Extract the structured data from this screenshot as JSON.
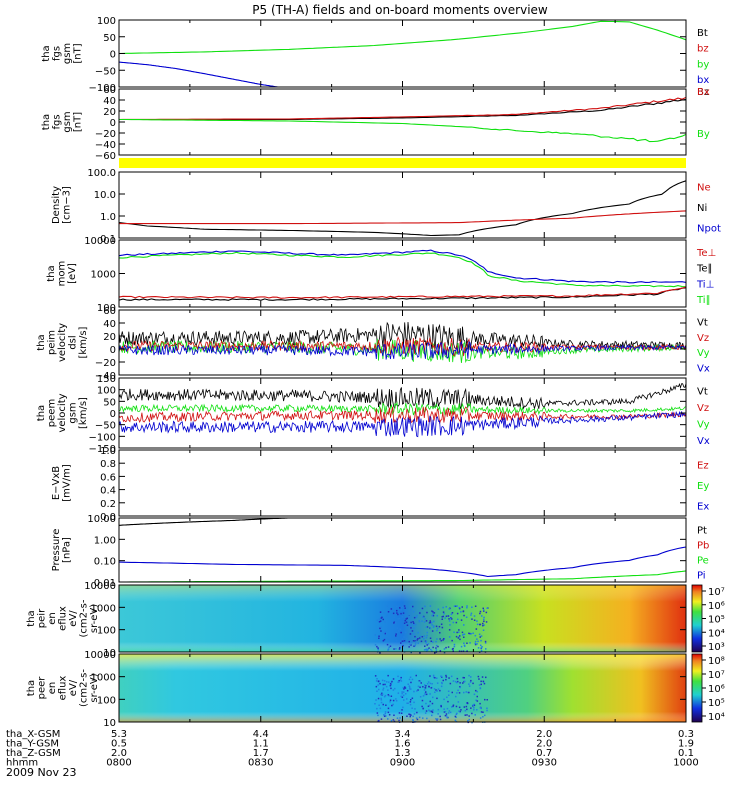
{
  "title": "P5 (TH-A) fields and on-board moments overview",
  "date": "2009 Nov 23",
  "colors": {
    "black": "#000000",
    "red": "#d01010",
    "green": "#10e010",
    "blue": "#0000d0",
    "yellow": "#ffff00"
  },
  "chart_data": [
    {
      "type": "line",
      "ylabel": [
        "tha",
        "fgs",
        "gsm",
        "[nT]"
      ],
      "yticks": [
        "100",
        "50",
        "0",
        "−50",
        "−100"
      ],
      "ylim": [
        -100,
        110
      ],
      "legend": [
        {
          "name": "Bt",
          "color": "black"
        },
        {
          "name": "bz",
          "color": "red"
        },
        {
          "name": "by",
          "color": "green"
        },
        {
          "name": "bx",
          "color": "blue"
        }
      ],
      "series": [
        {
          "name": "by",
          "color": "green",
          "x": [
            0,
            0.15,
            0.3,
            0.45,
            0.6,
            0.72,
            0.8,
            0.85,
            0.9,
            0.95,
            1.0
          ],
          "y": [
            5,
            10,
            18,
            30,
            50,
            72,
            90,
            106,
            104,
            78,
            48
          ]
        },
        {
          "name": "bx",
          "color": "blue",
          "x": [
            0,
            0.05,
            0.1,
            0.15,
            0.2,
            0.25,
            0.28
          ],
          "y": [
            -22,
            -30,
            -42,
            -58,
            -75,
            -92,
            -100
          ]
        }
      ]
    },
    {
      "type": "line",
      "ylabel": [
        "tha",
        "fgs",
        "gsm",
        "[nT]"
      ],
      "yticks": [
        "60",
        "40",
        "20",
        "0",
        "−20",
        "−40",
        "−60"
      ],
      "ylim": [
        -70,
        60
      ],
      "legend": [
        {
          "name": "Bz",
          "color": "black"
        },
        {
          "name": "Bx",
          "color": "red"
        },
        {
          "name": "By",
          "color": "green"
        }
      ],
      "series": [
        {
          "name": "Bz",
          "color": "black",
          "x": [
            0,
            0.3,
            0.5,
            0.7,
            0.85,
            0.95,
            1.0
          ],
          "y": [
            0,
            0,
            3,
            8,
            18,
            32,
            40
          ]
        },
        {
          "name": "Bx",
          "color": "red",
          "x": [
            0,
            0.3,
            0.5,
            0.7,
            0.85,
            0.95,
            1.0
          ],
          "y": [
            0,
            1,
            5,
            10,
            22,
            36,
            42
          ]
        },
        {
          "name": "By",
          "color": "green",
          "x": [
            0,
            0.3,
            0.5,
            0.6,
            0.7,
            0.8,
            0.9,
            0.95,
            1.0
          ],
          "y": [
            0,
            -3,
            -8,
            -14,
            -22,
            -28,
            -38,
            -45,
            -30
          ]
        }
      ]
    },
    {
      "type": "line",
      "log": true,
      "ylabel": [
        "Density",
        "[cm−3]"
      ],
      "yticks": [
        "100.0",
        "10.0",
        "1.0",
        "0.1"
      ],
      "ylim": [
        0.1,
        100
      ],
      "legend": [
        {
          "name": "Ne",
          "color": "red"
        },
        {
          "name": "Ni",
          "color": "black"
        },
        {
          "name": "Npot",
          "color": "blue"
        }
      ],
      "series": [
        {
          "name": "Ni",
          "color": "black",
          "x": [
            0,
            0.05,
            0.15,
            0.3,
            0.45,
            0.55,
            0.6,
            0.7,
            0.8,
            0.9,
            0.96,
            1.0
          ],
          "y": [
            0.5,
            0.35,
            0.25,
            0.22,
            0.18,
            0.13,
            0.14,
            0.4,
            1.3,
            3.5,
            10,
            40
          ]
        },
        {
          "name": "Ne",
          "color": "red",
          "x": [
            0,
            0.3,
            0.6,
            0.8,
            1.0
          ],
          "y": [
            0.45,
            0.45,
            0.5,
            0.8,
            1.7
          ]
        }
      ]
    },
    {
      "type": "line",
      "log": true,
      "ylabel": [
        "tha",
        "mom",
        "[eV]"
      ],
      "yticks": [
        "10000",
        "1000",
        "100"
      ],
      "ylim": [
        50,
        10000
      ],
      "legend": [
        {
          "name": "Te⊥",
          "color": "red"
        },
        {
          "name": "Te∥",
          "color": "black"
        },
        {
          "name": "Ti⊥",
          "color": "blue"
        },
        {
          "name": "Ti∥",
          "color": "green"
        }
      ],
      "series": [
        {
          "name": "Ti⊥",
          "color": "blue",
          "x": [
            0,
            0.1,
            0.2,
            0.3,
            0.4,
            0.5,
            0.55,
            0.6,
            0.65,
            0.7,
            0.8,
            0.9,
            1.0
          ],
          "y": [
            3000,
            3500,
            4200,
            3500,
            3000,
            3800,
            4300,
            3000,
            800,
            500,
            380,
            350,
            360
          ]
        },
        {
          "name": "Ti∥",
          "color": "green",
          "x": [
            0,
            0.1,
            0.2,
            0.3,
            0.4,
            0.5,
            0.55,
            0.6,
            0.65,
            0.7,
            0.8,
            0.9,
            1.0
          ],
          "y": [
            2500,
            3000,
            3600,
            3000,
            2600,
            3200,
            3600,
            2500,
            600,
            400,
            280,
            260,
            260
          ]
        },
        {
          "name": "Te∥",
          "color": "black",
          "x": [
            0,
            0.3,
            0.6,
            0.8,
            0.95,
            1.0
          ],
          "y": [
            90,
            90,
            100,
            110,
            140,
            230
          ]
        },
        {
          "name": "Te⊥",
          "color": "red",
          "x": [
            0,
            0.3,
            0.6,
            0.8,
            0.95,
            1.0
          ],
          "y": [
            110,
            105,
            115,
            120,
            150,
            240
          ]
        }
      ]
    },
    {
      "type": "line",
      "ylabel": [
        "tha",
        "peim",
        "velocity",
        "dsl",
        "[km/s]"
      ],
      "yticks": [
        "60",
        "40",
        "20",
        "0",
        "−20",
        "−40"
      ],
      "ylim": [
        -45,
        60
      ],
      "legend": [
        {
          "name": "Vt",
          "color": "black"
        },
        {
          "name": "Vz",
          "color": "red"
        },
        {
          "name": "Vy",
          "color": "green"
        },
        {
          "name": "Vx",
          "color": "blue"
        }
      ],
      "series": [
        {
          "name": "Vt",
          "color": "black",
          "noise": 12,
          "x": [
            0,
            0.3,
            0.5,
            0.6,
            0.7,
            0.8,
            1.0
          ],
          "y": [
            15,
            15,
            22,
            15,
            10,
            5,
            3
          ]
        },
        {
          "name": "Vy",
          "color": "green",
          "noise": 10,
          "x": [
            0,
            0.3,
            0.5,
            0.6,
            0.7,
            0.8,
            1.0
          ],
          "y": [
            0,
            0,
            -5,
            -8,
            -10,
            -5,
            0
          ]
        },
        {
          "name": "Vz",
          "color": "red",
          "noise": 8,
          "x": [
            0,
            0.3,
            0.5,
            0.6,
            0.7,
            0.8,
            1.0
          ],
          "y": [
            2,
            2,
            2,
            0,
            0,
            0,
            0
          ]
        },
        {
          "name": "Vx",
          "color": "blue",
          "noise": 8,
          "x": [
            0,
            0.3,
            0.5,
            0.6,
            0.7,
            0.8,
            1.0
          ],
          "y": [
            -5,
            -5,
            -8,
            -5,
            -3,
            -2,
            0
          ]
        }
      ]
    },
    {
      "type": "line",
      "ylabel": [
        "tha",
        "peem",
        "velocity",
        "gsm",
        "[km/s]"
      ],
      "yticks": [
        "150",
        "100",
        "50",
        "0",
        "−50",
        "−100",
        "−150"
      ],
      "ylim": [
        -150,
        150
      ],
      "legend": [
        {
          "name": "Vt",
          "color": "black"
        },
        {
          "name": "Vz",
          "color": "red"
        },
        {
          "name": "Vy",
          "color": "green"
        },
        {
          "name": "Vx",
          "color": "blue"
        }
      ],
      "series": [
        {
          "name": "Vt",
          "color": "black",
          "noise": 25,
          "x": [
            0,
            0.3,
            0.6,
            0.75,
            0.9,
            1.0
          ],
          "y": [
            80,
            75,
            60,
            40,
            50,
            120
          ]
        },
        {
          "name": "Vy",
          "color": "green",
          "noise": 15,
          "x": [
            0,
            0.3,
            0.6,
            0.75,
            0.9,
            1.0
          ],
          "y": [
            20,
            20,
            15,
            10,
            10,
            20
          ]
        },
        {
          "name": "Vz",
          "color": "red",
          "noise": 20,
          "x": [
            0,
            0.3,
            0.6,
            0.75,
            0.9,
            1.0
          ],
          "y": [
            -20,
            -10,
            -10,
            -15,
            -15,
            -5
          ]
        },
        {
          "name": "Vx",
          "color": "blue",
          "noise": 25,
          "x": [
            0,
            0.3,
            0.6,
            0.75,
            0.9,
            1.0
          ],
          "y": [
            -60,
            -60,
            -55,
            -35,
            -20,
            -5
          ]
        }
      ]
    },
    {
      "type": "line",
      "ylabel": [
        "E−VxB",
        "[mV/m]"
      ],
      "yticks": [
        "1.0",
        "0.8",
        "0.6",
        "0.4",
        "0.2",
        "0.0"
      ],
      "ylim": [
        0,
        1
      ],
      "legend": [
        {
          "name": "Ez",
          "color": "red"
        },
        {
          "name": "Ey",
          "color": "green"
        },
        {
          "name": "Ex",
          "color": "blue"
        }
      ],
      "series": []
    },
    {
      "type": "line",
      "log": true,
      "ylabel": [
        "Pressure",
        "[nPa]"
      ],
      "yticks": [
        "10.00",
        "1.00",
        "0.10",
        "0.01"
      ],
      "ylim": [
        0.01,
        30
      ],
      "legend": [
        {
          "name": "Pt",
          "color": "black"
        },
        {
          "name": "Pb",
          "color": "red"
        },
        {
          "name": "Pe",
          "color": "green"
        },
        {
          "name": "Pi",
          "color": "blue"
        }
      ],
      "series": [
        {
          "name": "Pt",
          "color": "black",
          "x": [
            0,
            0.1,
            0.2,
            0.27,
            0.3
          ],
          "y": [
            12,
            17,
            22,
            28,
            30
          ]
        },
        {
          "name": "Pi",
          "color": "blue",
          "x": [
            0,
            0.2,
            0.4,
            0.55,
            0.65,
            0.7,
            0.8,
            0.9,
            0.95,
            1.0
          ],
          "y": [
            0.12,
            0.09,
            0.08,
            0.05,
            0.02,
            0.025,
            0.06,
            0.15,
            0.3,
            0.8
          ]
        },
        {
          "name": "Pe",
          "color": "green",
          "x": [
            0,
            0.3,
            0.6,
            0.8,
            0.95,
            1.0
          ],
          "y": [
            0.01,
            0.011,
            0.012,
            0.015,
            0.025,
            0.04
          ]
        }
      ]
    },
    {
      "type": "heatmap",
      "ylabel": [
        "tha",
        "peir",
        "en",
        "eflux",
        "eV/",
        "(cm2-s-",
        "sr-eV)"
      ],
      "yticks": [
        "10000",
        "1000",
        "100",
        "10"
      ],
      "colorbar": {
        "ticks": [
          "10⁷",
          "10⁶",
          "10⁵",
          "10⁴",
          "10³"
        ]
      }
    },
    {
      "type": "heatmap",
      "ylabel": [
        "tha",
        "peer",
        "en",
        "eflux",
        "eV/",
        "(cm2-s-",
        "sr-eV)"
      ],
      "yticks": [
        "10000",
        "1000",
        "100",
        "10"
      ],
      "colorbar": {
        "ticks": [
          "10⁸",
          "10⁷",
          "10⁶",
          "10⁵",
          "10⁴"
        ]
      }
    }
  ],
  "axis": {
    "rows": [
      {
        "label": "tha_X-GSM",
        "values": [
          "5.3",
          "4.4",
          "3.4",
          "2.0",
          "0.3"
        ]
      },
      {
        "label": "tha_Y-GSM",
        "values": [
          "0.5",
          "1.1",
          "1.6",
          "2.0",
          "1.9"
        ]
      },
      {
        "label": "tha_Z-GSM",
        "values": [
          "2.0",
          "1.7",
          "1.3",
          "0.7",
          "0.1"
        ]
      },
      {
        "label": "hhmm",
        "values": [
          "0800",
          "0830",
          "0900",
          "0930",
          "1000"
        ]
      }
    ]
  }
}
